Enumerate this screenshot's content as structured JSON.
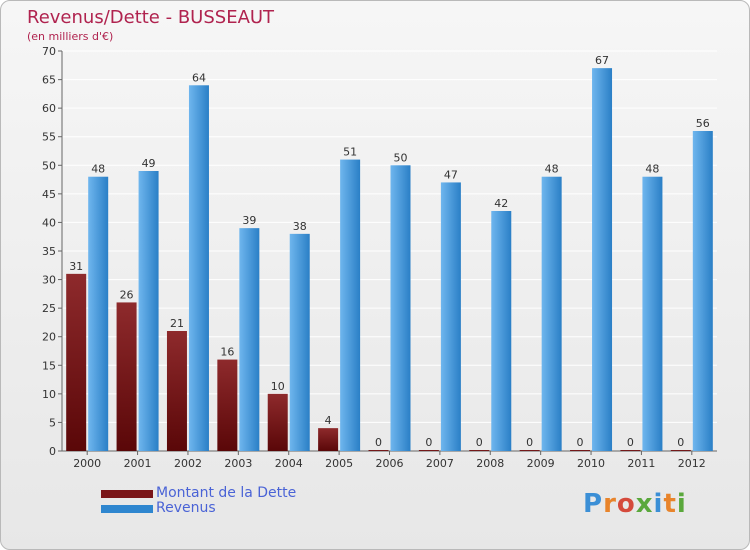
{
  "title": "Revenus/Dette - BUSSEAUT",
  "subtitle": "(en milliers d'€)",
  "logo": {
    "text": "Proxiti",
    "letter_colors": [
      "#3b8fd6",
      "#e8842b",
      "#d54a3c",
      "#5aa83c",
      "#3b8fd6",
      "#e8842b",
      "#5aa83c"
    ]
  },
  "colors": {
    "dette": "#7a1518",
    "revenus": "#2e86cf",
    "axis_text": "#333333",
    "title": "#b0234f",
    "legend_text": "#4a63d6"
  },
  "chart_data": {
    "type": "bar",
    "title": "Revenus/Dette - BUSSEAUT",
    "subtitle": "(en milliers d'€)",
    "categories": [
      "2000",
      "2001",
      "2002",
      "2003",
      "2004",
      "2005",
      "2006",
      "2007",
      "2008",
      "2009",
      "2010",
      "2011",
      "2012"
    ],
    "series": [
      {
        "name": "Montant de la Dette",
        "color": "#7a1518",
        "values": [
          31,
          26,
          21,
          16,
          10,
          4,
          0,
          0,
          0,
          0,
          0,
          0,
          0
        ]
      },
      {
        "name": "Revenus",
        "color": "#2e86cf",
        "values": [
          48,
          49,
          64,
          39,
          38,
          51,
          50,
          47,
          42,
          48,
          67,
          48,
          56
        ]
      }
    ],
    "ylim": [
      0,
      70
    ],
    "yticks": [
      0,
      5,
      10,
      15,
      20,
      25,
      30,
      35,
      40,
      45,
      50,
      55,
      60,
      65,
      70
    ],
    "grid": true,
    "legend_position": "bottom-left",
    "data_labels": true
  }
}
